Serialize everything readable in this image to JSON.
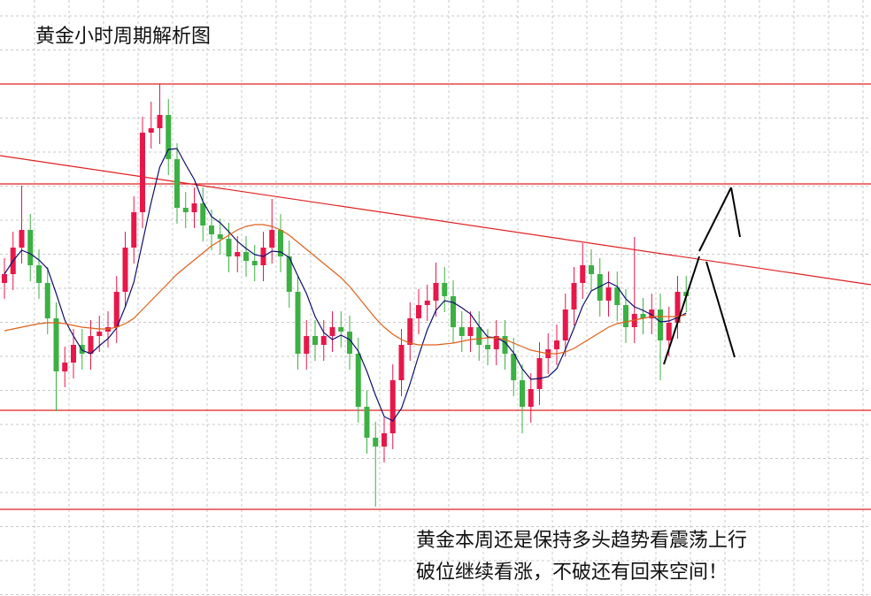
{
  "chart_data": {
    "type": "candlestick",
    "title": "黄金小时周期解析图",
    "annotations": [
      "黄金本周还是保持多头趋势看震荡上行",
      "破位继续看涨，不破还有回来空间！"
    ],
    "ylim": [
      0,
      674
    ],
    "up_color": "#e8174a",
    "down_color": "#3cb043",
    "open": [
      354,
      364,
      394,
      414,
      374,
      354,
      314,
      254,
      264,
      284,
      274,
      294,
      299,
      304,
      344,
      394,
      434,
      524,
      529,
      544,
      494,
      439,
      434,
      444,
      419,
      409,
      404,
      384,
      389,
      379,
      374,
      394,
      414,
      384,
      344,
      274,
      294,
      284,
      294,
      304,
      299,
      274,
      214,
      179,
      169,
      184,
      244,
      284,
      314,
      329,
      334,
      354,
      339,
      304,
      294,
      304,
      284,
      279,
      294,
      274,
      244,
      214,
      234,
      269,
      279,
      289,
      324,
      354,
      374,
      364,
      334,
      349,
      329,
      304,
      319,
      314,
      324,
      289,
      309,
      344
    ],
    "high": [
      382,
      412,
      464,
      432,
      392,
      372,
      332,
      282,
      302,
      302,
      312,
      317,
      322,
      362,
      412,
      452,
      542,
      559,
      579,
      562,
      512,
      457,
      462,
      462,
      437,
      427,
      422,
      407,
      407,
      397,
      412,
      449,
      432,
      402,
      362,
      312,
      312,
      312,
      322,
      322,
      317,
      292,
      232,
      197,
      202,
      262,
      302,
      332,
      347,
      352,
      377,
      372,
      357,
      322,
      322,
      322,
      302,
      312,
      312,
      292,
      262,
      252,
      287,
      297,
      307,
      342,
      372,
      399,
      392,
      382,
      367,
      367,
      347,
      406,
      337,
      342,
      342,
      327,
      362,
      362
    ],
    "low": [
      336,
      346,
      376,
      356,
      336,
      296,
      209,
      236,
      246,
      256,
      256,
      276,
      281,
      286,
      326,
      376,
      416,
      506,
      511,
      476,
      421,
      416,
      416,
      401,
      391,
      386,
      366,
      366,
      361,
      356,
      356,
      376,
      366,
      326,
      256,
      256,
      266,
      266,
      276,
      281,
      256,
      196,
      161,
      101,
      151,
      166,
      226,
      266,
      296,
      311,
      316,
      321,
      286,
      276,
      276,
      266,
      261,
      261,
      256,
      226,
      184,
      196,
      216,
      251,
      261,
      271,
      306,
      336,
      346,
      316,
      316,
      311,
      286,
      286,
      296,
      296,
      244,
      271,
      291,
      321
    ],
    "close": [
      364,
      394,
      414,
      374,
      354,
      314,
      254,
      264,
      284,
      274,
      294,
      299,
      304,
      344,
      394,
      434,
      524,
      529,
      544,
      494,
      439,
      434,
      444,
      419,
      409,
      404,
      384,
      389,
      379,
      374,
      394,
      414,
      384,
      344,
      274,
      294,
      284,
      294,
      304,
      299,
      274,
      214,
      179,
      169,
      184,
      244,
      284,
      314,
      329,
      334,
      354,
      339,
      304,
      294,
      304,
      284,
      279,
      294,
      274,
      244,
      214,
      234,
      269,
      279,
      289,
      324,
      354,
      374,
      364,
      334,
      349,
      329,
      304,
      319,
      314,
      324,
      289,
      309,
      344,
      339
    ],
    "moving_averages": [
      {
        "color": "#10106e",
        "values": [
          364,
          379,
          391,
          387,
          380,
          370,
          342,
          312,
          294,
          278,
          274,
          283,
          291,
          303,
          327,
          355,
          400,
          445,
          485,
          505,
          506,
          488,
          471,
          446,
          429,
          422,
          412,
          401,
          393,
          386,
          384,
          390,
          389,
          383,
          362,
          342,
          316,
          298,
          290,
          295,
          290,
          277,
          254,
          227,
          203,
          198,
          212,
          240,
          272,
          301,
          323,
          334,
          332,
          326,
          319,
          305,
          293,
          292,
          287,
          275,
          257,
          245,
          246,
          248,
          257,
          279,
          303,
          328,
          345,
          350,
          355,
          350,
          336,
          327,
          323,
          318,
          310,
          311,
          315,
          320
        ]
      },
      {
        "color": "#e0601a",
        "values": [
          300,
          302,
          304,
          306,
          308,
          309,
          309,
          308,
          306,
          304,
          303,
          302,
          302,
          304,
          308,
          314,
          324,
          334,
          344,
          354,
          364,
          372,
          380,
          388,
          396,
          402,
          408,
          414,
          418,
          420,
          420,
          418,
          414,
          408,
          400,
          392,
          384,
          376,
          368,
          360,
          350,
          338,
          326,
          314,
          304,
          296,
          290,
          286,
          284,
          284,
          284,
          285,
          286,
          288,
          290,
          291,
          292,
          292,
          290,
          286,
          282,
          278,
          276,
          274,
          274,
          276,
          280,
          286,
          292,
          298,
          304,
          308,
          310,
          312,
          314,
          316,
          316,
          316,
          316,
          318
        ]
      }
    ],
    "levels": [
      579,
      466,
      210,
      98
    ],
    "level_color": "#e02020",
    "trendline": [
      498,
      352
    ]
  }
}
